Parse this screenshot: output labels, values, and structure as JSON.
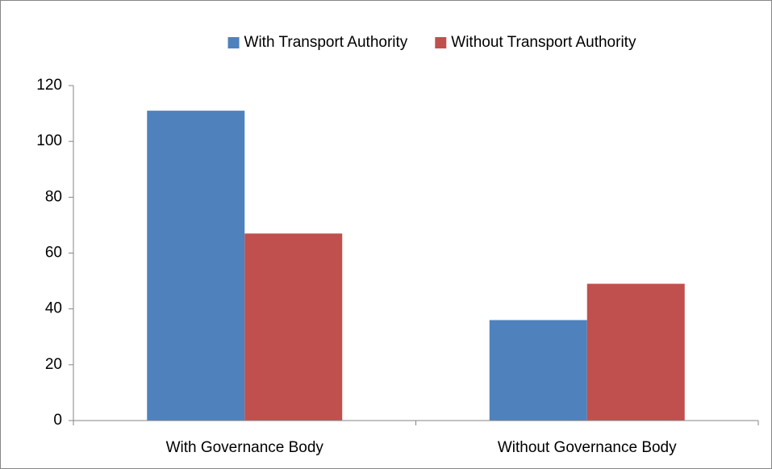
{
  "chart_data": {
    "type": "bar",
    "categories": [
      "With Governance Body",
      "Without Governance Body"
    ],
    "series": [
      {
        "name": "With Transport Authority",
        "color": "#4f81bd",
        "values": [
          111,
          36
        ]
      },
      {
        "name": "Without Transport Authority",
        "color": "#c0504d",
        "values": [
          67,
          49
        ]
      }
    ],
    "ylim": [
      0,
      120
    ],
    "yticks": [
      0,
      20,
      40,
      60,
      80,
      100,
      120
    ],
    "grid": false,
    "legend": "top"
  }
}
